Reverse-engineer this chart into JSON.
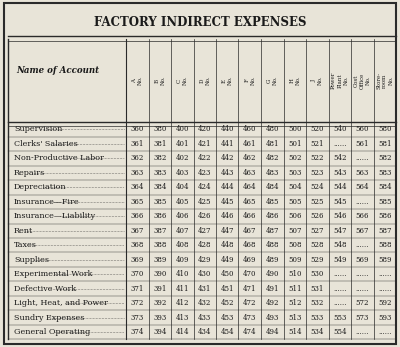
{
  "title": "FACTORY INDIRECT EXPENSES",
  "name_col_header": "Name of Account",
  "col_headers": [
    "A\nNo.",
    "B\nNo.",
    "C\nNo.",
    "D\nNo.",
    "E\nNo.",
    "F\nNo.",
    "G\nNo.",
    "H\nNo.",
    "J\nNo.",
    "Power\nPlant\nNo.",
    "Cost\nOffice\nNo.",
    "Store-\nroom\nNo."
  ],
  "rows": [
    {
      "name": "Supervision",
      "vals": [
        "360",
        "380",
        "400",
        "420",
        "440",
        "460",
        "480",
        "500",
        "520",
        "540",
        "560",
        "580"
      ]
    },
    {
      "name": "Clerks' Salaries",
      "vals": [
        "361",
        "381",
        "401",
        "421",
        "441",
        "461",
        "481",
        "501",
        "521",
        "......",
        "561",
        "581"
      ]
    },
    {
      "name": "Non-Productive Labor",
      "vals": [
        "362",
        "382",
        "402",
        "422",
        "442",
        "462",
        "482",
        "502",
        "522",
        "542",
        "......",
        "582"
      ]
    },
    {
      "name": "Repairs",
      "vals": [
        "363",
        "383",
        "403",
        "423",
        "443",
        "463",
        "483",
        "503",
        "523",
        "543",
        "563",
        "583"
      ]
    },
    {
      "name": "Depreciation",
      "vals": [
        "364",
        "384",
        "404",
        "424",
        "444",
        "464",
        "484",
        "504",
        "524",
        "544",
        "564",
        "584"
      ]
    },
    {
      "name": "Insurance—Fire",
      "vals": [
        "365",
        "385",
        "405",
        "425",
        "445",
        "465",
        "485",
        "505",
        "525",
        "545",
        "......",
        "585"
      ]
    },
    {
      "name": "Insurance—Liability",
      "vals": [
        "366",
        "386",
        "406",
        "426",
        "446",
        "466",
        "486",
        "506",
        "526",
        "546",
        "566",
        "586"
      ]
    },
    {
      "name": "Rent",
      "vals": [
        "367",
        "387",
        "407",
        "427",
        "447",
        "467",
        "487",
        "507",
        "527",
        "547",
        "567",
        "587"
      ]
    },
    {
      "name": "Taxes",
      "vals": [
        "368",
        "388",
        "408",
        "428",
        "448",
        "468",
        "488",
        "508",
        "528",
        "548",
        "......",
        "588"
      ]
    },
    {
      "name": "Supplies",
      "vals": [
        "369",
        "389",
        "409",
        "429",
        "449",
        "469",
        "489",
        "509",
        "529",
        "549",
        "569",
        "589"
      ]
    },
    {
      "name": "Experimental Work",
      "vals": [
        "370",
        "390",
        "410",
        "430",
        "450",
        "470",
        "490",
        "510",
        "530",
        "......",
        "......",
        "......"
      ]
    },
    {
      "name": "Defective Work",
      "vals": [
        "371",
        "391",
        "411",
        "431",
        "451",
        "471",
        "491",
        "511",
        "531",
        "......",
        "......",
        "......"
      ]
    },
    {
      "name": "Light, Heat, and Power",
      "vals": [
        "372",
        "392",
        "412",
        "432",
        "452",
        "472",
        "492",
        "512",
        "532",
        "......",
        "572",
        "592"
      ]
    },
    {
      "name": "Sundry Expenses",
      "vals": [
        "373",
        "393",
        "413",
        "433",
        "453",
        "473",
        "493",
        "513",
        "533",
        "553",
        "573",
        "593"
      ]
    },
    {
      "name": "General Operating",
      "vals": [
        "374",
        "394",
        "414",
        "434",
        "454",
        "474",
        "494",
        "514",
        "534",
        "554",
        "......",
        "......"
      ]
    }
  ],
  "bg_color": "#e8e4d8",
  "text_color": "#1a1a1a",
  "border_color": "#2a2a2a",
  "title_fontsize": 8.5,
  "header_fontsize": 4.0,
  "body_fontsize": 5.0,
  "name_fontsize": 5.8,
  "name_header_fontsize": 6.2
}
